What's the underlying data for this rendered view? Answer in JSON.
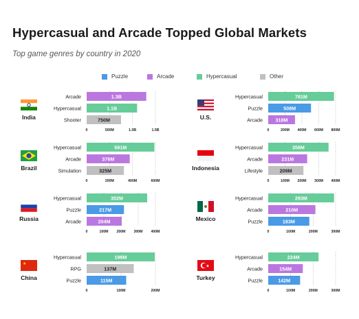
{
  "title": "Hypercasual and Arcade Topped Global Markets",
  "subtitle": "Top game genres by country in 2020",
  "colors": {
    "Puzzle": "#4a9ae6",
    "Arcade": "#bb77e0",
    "Hypercasual": "#66cc99",
    "Other": "#c0c0c0"
  },
  "legend": [
    {
      "label": "Puzzle",
      "key": "Puzzle"
    },
    {
      "label": "Arcade",
      "key": "Arcade"
    },
    {
      "label": "Hypercasual",
      "key": "Hypercasual"
    },
    {
      "label": "Other",
      "key": "Other"
    }
  ],
  "chart_data": [
    {
      "type": "bar",
      "country": "India",
      "flag": "india",
      "categories": [
        "Arcade",
        "Hypercasual",
        "Shooter"
      ],
      "values": [
        1.3,
        1.1,
        0.75
      ],
      "value_labels": [
        "1.3B",
        "1.1B",
        "750M"
      ],
      "genres": [
        "Arcade",
        "Hypercasual",
        "Other"
      ],
      "ticks": [
        0,
        0.5,
        1.0,
        1.5
      ],
      "tick_labels": [
        "0",
        "500M",
        "1.0B",
        "1.5B"
      ],
      "xlim": [
        0,
        1.5
      ]
    },
    {
      "type": "bar",
      "country": "U.S.",
      "flag": "us",
      "categories": [
        "Hypercasual",
        "Puzzle",
        "Arcade"
      ],
      "values": [
        781,
        508,
        318
      ],
      "value_labels": [
        "781M",
        "508M",
        "318M"
      ],
      "genres": [
        "Hypercasual",
        "Puzzle",
        "Arcade"
      ],
      "ticks": [
        0,
        200,
        400,
        600,
        800
      ],
      "tick_labels": [
        "0",
        "200M",
        "400M",
        "600M",
        "800M"
      ],
      "xlim": [
        0,
        800
      ]
    },
    {
      "type": "bar",
      "country": "Brazil",
      "flag": "brazil",
      "categories": [
        "Hypercasual",
        "Arcade",
        "Simulation"
      ],
      "values": [
        591,
        376,
        325
      ],
      "value_labels": [
        "591M",
        "376M",
        "325M"
      ],
      "genres": [
        "Hypercasual",
        "Arcade",
        "Other"
      ],
      "ticks": [
        0,
        200,
        400,
        600
      ],
      "tick_labels": [
        "0",
        "200M",
        "400M",
        "600M"
      ],
      "xlim": [
        0,
        600
      ]
    },
    {
      "type": "bar",
      "country": "Indonesia",
      "flag": "indonesia",
      "categories": [
        "Hypercasual",
        "Arcade",
        "Lifestyle"
      ],
      "values": [
        358,
        231,
        209
      ],
      "value_labels": [
        "358M",
        "231M",
        "209M"
      ],
      "genres": [
        "Hypercasual",
        "Arcade",
        "Other"
      ],
      "ticks": [
        0,
        100,
        200,
        300,
        400
      ],
      "tick_labels": [
        "0",
        "100M",
        "200M",
        "300M",
        "400M"
      ],
      "xlim": [
        0,
        400
      ]
    },
    {
      "type": "bar",
      "country": "Russia",
      "flag": "russia",
      "categories": [
        "Hypercasual",
        "Puzzle",
        "Arcade"
      ],
      "values": [
        352,
        217,
        204
      ],
      "value_labels": [
        "352M",
        "217M",
        "204M"
      ],
      "genres": [
        "Hypercasual",
        "Puzzle",
        "Arcade"
      ],
      "ticks": [
        0,
        100,
        200,
        300,
        400
      ],
      "tick_labels": [
        "0",
        "100M",
        "200M",
        "300M",
        "400M"
      ],
      "xlim": [
        0,
        400
      ]
    },
    {
      "type": "bar",
      "country": "Mexico",
      "flag": "mexico",
      "categories": [
        "Hypercasual",
        "Arcade",
        "Puzzle"
      ],
      "values": [
        293,
        210,
        183
      ],
      "value_labels": [
        "293M",
        "210M",
        "183M"
      ],
      "genres": [
        "Hypercasual",
        "Arcade",
        "Puzzle"
      ],
      "ticks": [
        0,
        100,
        200,
        300
      ],
      "tick_labels": [
        "0",
        "100M",
        "200M",
        "300M"
      ],
      "xlim": [
        0,
        300
      ]
    },
    {
      "type": "bar",
      "country": "China",
      "flag": "china",
      "categories": [
        "Hypercasual",
        "RPG",
        "Puzzle"
      ],
      "values": [
        198,
        137,
        115
      ],
      "value_labels": [
        "198M",
        "137M",
        "115M"
      ],
      "genres": [
        "Hypercasual",
        "Other",
        "Puzzle"
      ],
      "ticks": [
        0,
        100,
        200
      ],
      "tick_labels": [
        "0",
        "100M",
        "200M"
      ],
      "xlim": [
        0,
        200
      ]
    },
    {
      "type": "bar",
      "country": "Turkey",
      "flag": "turkey",
      "categories": [
        "Hypercasual",
        "Arcade",
        "Puzzle"
      ],
      "values": [
        224,
        154,
        142
      ],
      "value_labels": [
        "224M",
        "154M",
        "142M"
      ],
      "genres": [
        "Hypercasual",
        "Arcade",
        "Puzzle"
      ],
      "ticks": [
        0,
        100,
        200,
        300
      ],
      "tick_labels": [
        "0",
        "100M",
        "200M",
        "300M"
      ],
      "xlim": [
        0,
        300
      ]
    }
  ]
}
